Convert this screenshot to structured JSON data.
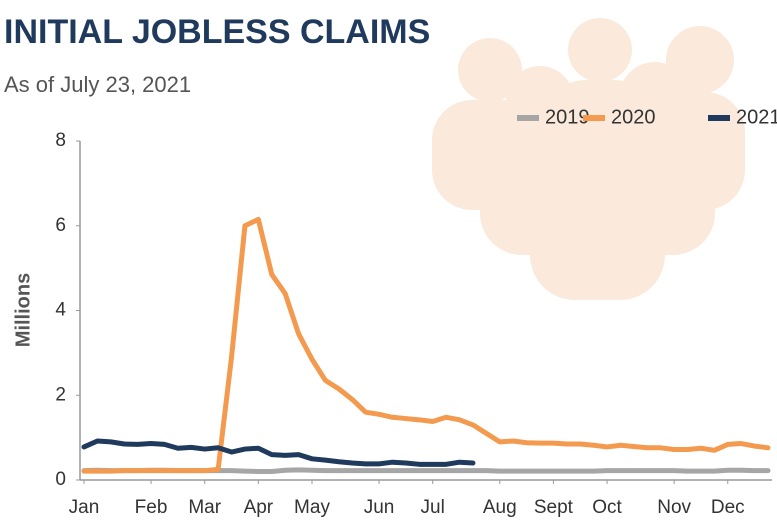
{
  "chart_data": {
    "type": "line",
    "title": "INITIAL JOBLESS CLAIMS",
    "subtitle": "As of July 23, 2021",
    "y_label": "Millions",
    "x": [
      1,
      2,
      3,
      4,
      5,
      6,
      7,
      8,
      9,
      10,
      11,
      12,
      13,
      14,
      15,
      16,
      17,
      18,
      19,
      20,
      21,
      22,
      23,
      24,
      25,
      26,
      27,
      28,
      29,
      30,
      31,
      32,
      33,
      34,
      35,
      36,
      37,
      38,
      39,
      40,
      41,
      42,
      43,
      44,
      45,
      46,
      47,
      48,
      49,
      50,
      51,
      52
    ],
    "xlim": [
      1,
      52
    ],
    "xticks": [
      {
        "value": 1,
        "label": "Jan"
      },
      {
        "value": 6,
        "label": "Feb"
      },
      {
        "value": 10,
        "label": "Mar"
      },
      {
        "value": 14,
        "label": "Apr"
      },
      {
        "value": 18,
        "label": "May"
      },
      {
        "value": 23,
        "label": "Jun"
      },
      {
        "value": 27,
        "label": "Jul"
      },
      {
        "value": 32,
        "label": "Aug"
      },
      {
        "value": 36,
        "label": "Sept"
      },
      {
        "value": 40,
        "label": "Oct"
      },
      {
        "value": 45,
        "label": "Nov"
      },
      {
        "value": 49,
        "label": "Dec"
      }
    ],
    "ylim": [
      0,
      8
    ],
    "yticks": [
      0,
      2,
      4,
      6,
      8
    ],
    "grid": false,
    "legend": "top-right",
    "series": [
      {
        "name": "2019",
        "color": "#a6a6a6",
        "values": [
          0.22,
          0.23,
          0.22,
          0.22,
          0.22,
          0.23,
          0.23,
          0.22,
          0.22,
          0.22,
          0.22,
          0.22,
          0.21,
          0.2,
          0.2,
          0.23,
          0.24,
          0.23,
          0.22,
          0.22,
          0.22,
          0.22,
          0.22,
          0.22,
          0.22,
          0.22,
          0.22,
          0.22,
          0.22,
          0.22,
          0.22,
          0.21,
          0.21,
          0.21,
          0.21,
          0.21,
          0.21,
          0.21,
          0.21,
          0.22,
          0.22,
          0.22,
          0.22,
          0.22,
          0.22,
          0.21,
          0.21,
          0.21,
          0.23,
          0.23,
          0.22,
          0.22
        ]
      },
      {
        "name": "2020",
        "color": "#f39a4f",
        "values": [
          0.21,
          0.21,
          0.21,
          0.22,
          0.22,
          0.22,
          0.22,
          0.22,
          0.22,
          0.22,
          0.25,
          2.9,
          6.0,
          6.15,
          4.85,
          4.4,
          3.45,
          2.85,
          2.35,
          2.15,
          1.9,
          1.6,
          1.55,
          1.48,
          1.45,
          1.42,
          1.38,
          1.48,
          1.42,
          1.3,
          1.1,
          0.9,
          0.92,
          0.88,
          0.87,
          0.87,
          0.85,
          0.85,
          0.82,
          0.78,
          0.82,
          0.79,
          0.76,
          0.76,
          0.72,
          0.72,
          0.75,
          0.7,
          0.84,
          0.86,
          0.8,
          0.76
        ]
      },
      {
        "name": "2021",
        "color": "#1f3a5c",
        "values": [
          0.78,
          0.92,
          0.9,
          0.85,
          0.84,
          0.86,
          0.84,
          0.75,
          0.77,
          0.73,
          0.76,
          0.66,
          0.73,
          0.75,
          0.6,
          0.58,
          0.6,
          0.5,
          0.47,
          0.43,
          0.4,
          0.38,
          0.38,
          0.42,
          0.4,
          0.37,
          0.37,
          0.37,
          0.42,
          0.4,
          null,
          null,
          null,
          null,
          null,
          null,
          null,
          null,
          null,
          null,
          null,
          null,
          null,
          null,
          null,
          null,
          null,
          null,
          null,
          null,
          null,
          null
        ]
      }
    ]
  }
}
